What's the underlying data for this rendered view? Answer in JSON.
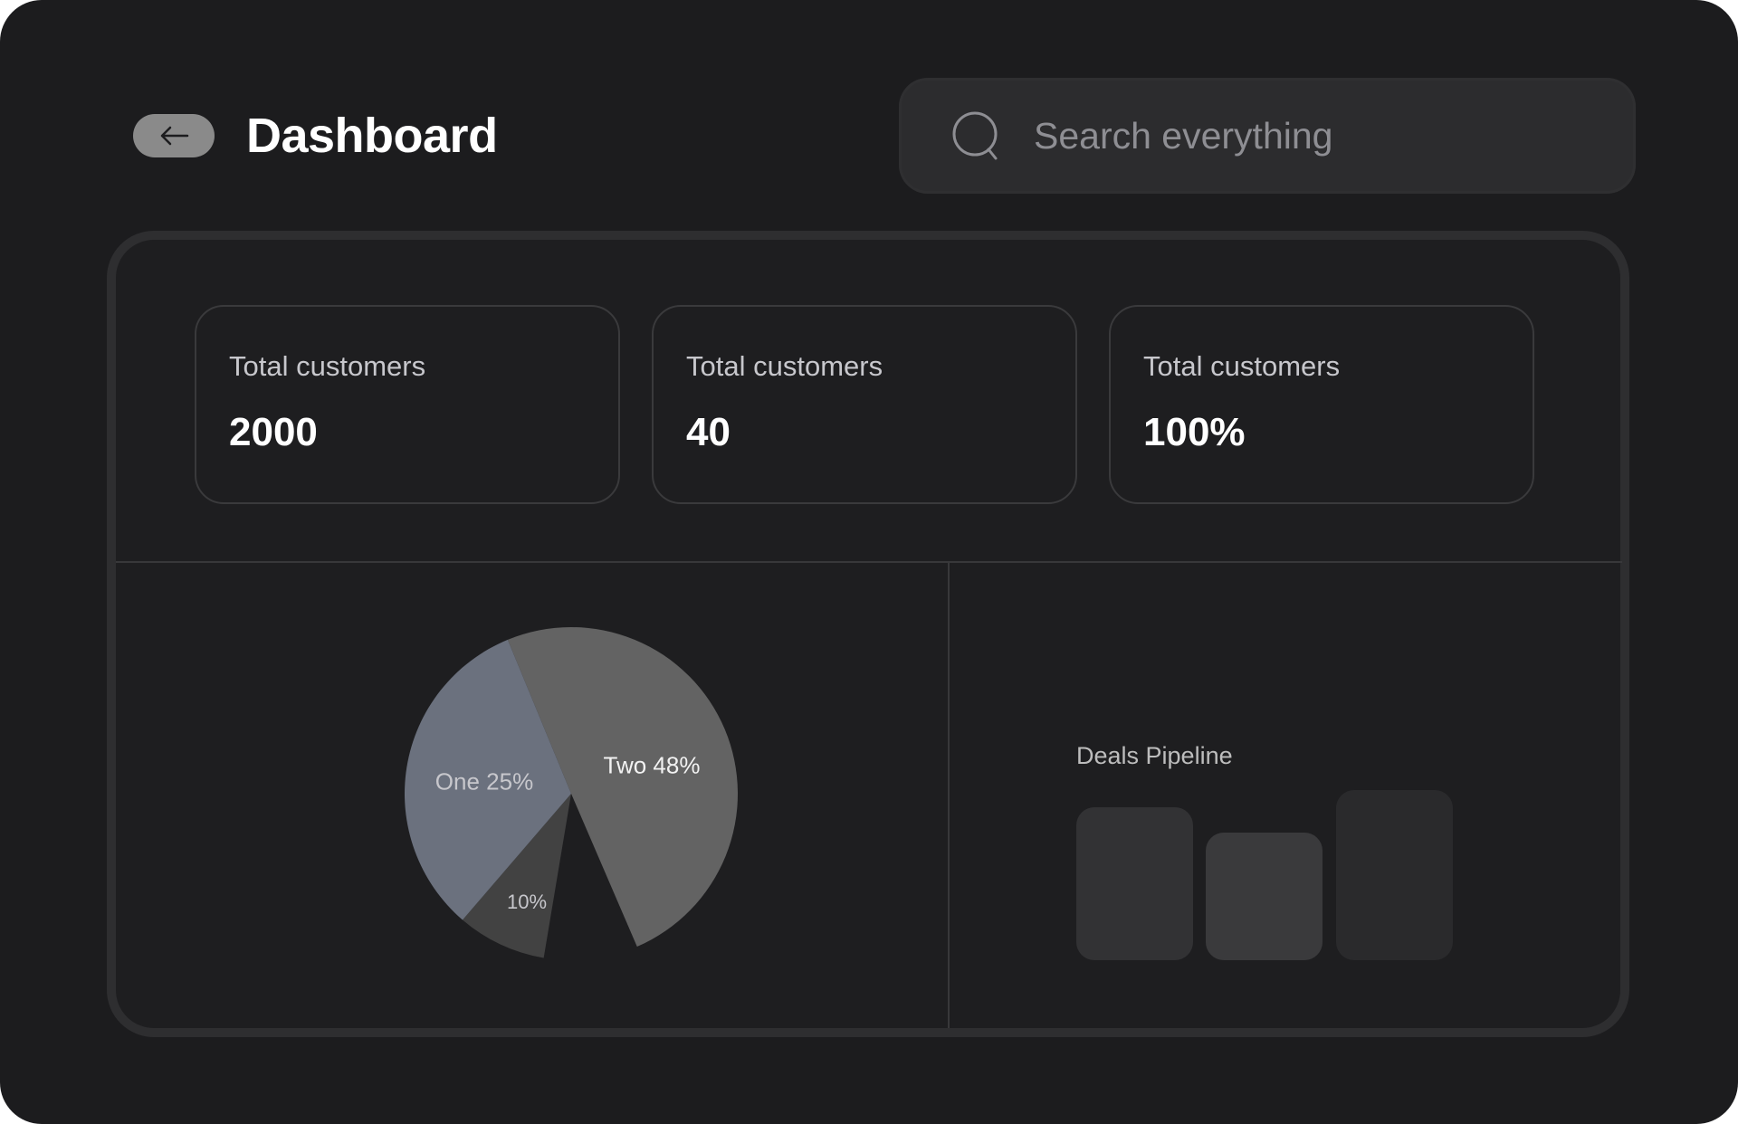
{
  "header": {
    "title": "Dashboard",
    "back_icon": "arrow-left-icon",
    "search": {
      "placeholder": "Search everything",
      "value": "",
      "icon": "search-icon"
    }
  },
  "stats": [
    {
      "label": "Total customers",
      "value": "2000"
    },
    {
      "label": "Total customers",
      "value": "40"
    },
    {
      "label": "Total customers",
      "value": "100%"
    }
  ],
  "colors": {
    "background": "#1c1c1e",
    "panel": "#1e1e20",
    "search_bg": "#2c2c2e",
    "back_button": "#8a8a8a"
  },
  "chart_data": [
    {
      "type": "pie",
      "slices": [
        {
          "name": "Two",
          "value": 48,
          "label": "Two 48%",
          "color": "#636363"
        },
        {
          "name": "",
          "value": 10,
          "label": "10%",
          "color": "#424242"
        },
        {
          "name": "One",
          "value": 25,
          "label": "One 25%",
          "color": "#6b717e"
        }
      ]
    },
    {
      "type": "bar",
      "title": "Deals Pipeline",
      "values": [
        0.9,
        0.75,
        1.0
      ],
      "colors": [
        "#323234",
        "#3a3a3c",
        "#2a2a2c"
      ]
    }
  ]
}
